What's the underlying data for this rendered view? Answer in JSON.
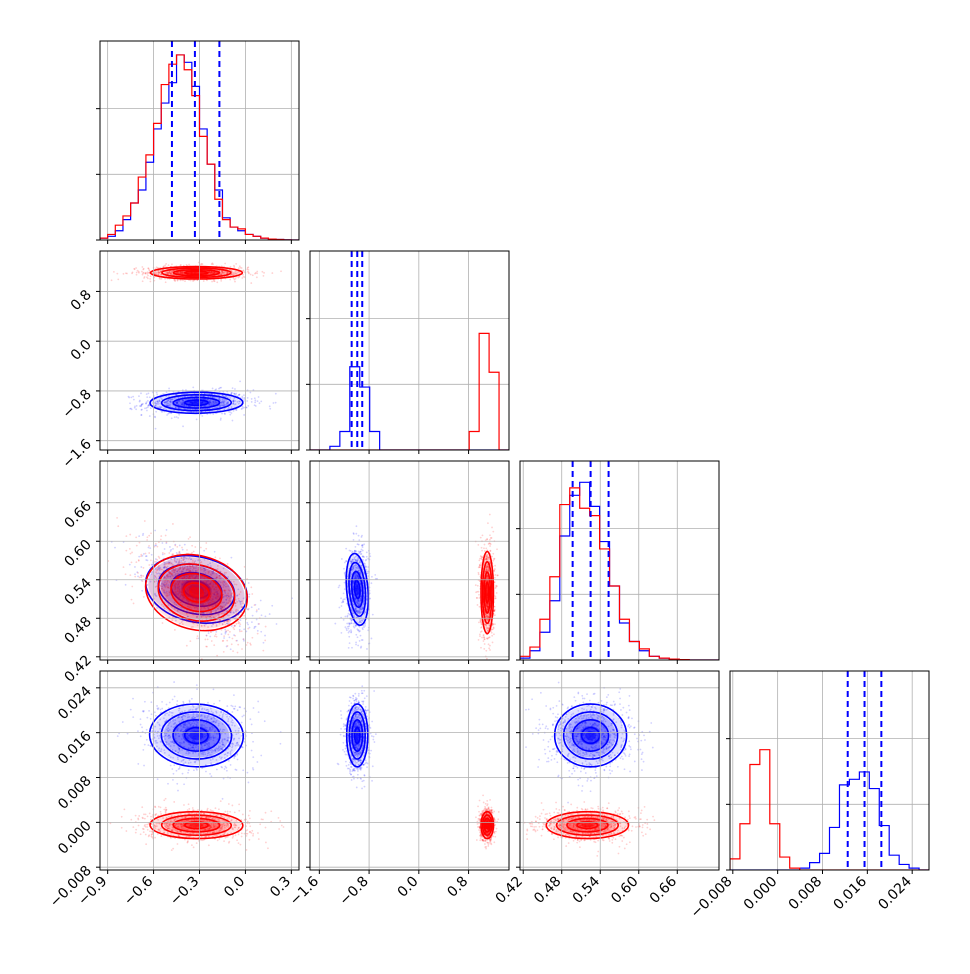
{
  "chart_data": {
    "type": "corner",
    "parameters": [
      {
        "range": [
          -0.95,
          0.35
        ],
        "ticks": [
          "−0.9",
          "−0.6",
          "−0.3",
          "0.0",
          "0.3"
        ],
        "tick_values": [
          -0.9,
          -0.6,
          -0.3,
          0.0,
          0.3
        ]
      },
      {
        "range": [
          -1.75,
          1.45
        ],
        "ticks": [
          "−1.6",
          "−0.8",
          "0.0",
          "0.8"
        ],
        "tick_values": [
          -1.6,
          -0.8,
          0.0,
          0.8
        ]
      },
      {
        "range": [
          0.415,
          0.725
        ],
        "ticks": [
          "0.42",
          "0.48",
          "0.54",
          "0.60",
          "0.66"
        ],
        "tick_values": [
          0.42,
          0.48,
          0.54,
          0.6,
          0.66
        ]
      },
      {
        "range": [
          -0.0085,
          0.027
        ],
        "ticks": [
          "−0.008",
          "0.000",
          "0.008",
          "0.016",
          "0.024"
        ],
        "tick_values": [
          -0.008,
          0.0,
          0.008,
          0.016,
          0.024
        ]
      }
    ],
    "series": [
      {
        "color": "#0000ff",
        "means": [
          -0.32,
          -0.99,
          0.525,
          0.0155
        ],
        "sigmas": [
          0.15,
          0.085,
          0.028,
          0.0028
        ],
        "correlations": {
          "1-0": 0.05,
          "2-0": -0.6,
          "2-1": 0.05,
          "3-0": -0.1,
          "3-1": 0.0,
          "3-2": 0.0
        },
        "quantile_lines": [
          [
            -0.48,
            -0.33,
            -0.17
          ],
          [
            -1.08,
            -0.99,
            -0.91
          ],
          [
            0.497,
            0.525,
            0.553
          ],
          [
            0.0125,
            0.0155,
            0.0185
          ]
        ]
      },
      {
        "color": "#ff0000",
        "means": [
          -0.32,
          1.1,
          0.52,
          -0.0005
        ],
        "sigmas": [
          0.15,
          0.05,
          0.032,
          0.0012
        ],
        "correlations": {
          "1-0": 0.0,
          "2-0": -0.62,
          "2-1": 0.0,
          "3-0": -0.05,
          "3-1": 0.0,
          "3-2": 0.0
        },
        "quantile_lines": null
      }
    ],
    "diagonal_histograms": [
      {
        "bins": [
          -0.95,
          -0.9,
          -0.85,
          -0.8,
          -0.75,
          -0.7,
          -0.65,
          -0.6,
          -0.55,
          -0.5,
          -0.45,
          -0.4,
          -0.35,
          -0.3,
          -0.25,
          -0.2,
          -0.15,
          -0.1,
          -0.05,
          0.0,
          0.05,
          0.1,
          0.15,
          0.2,
          0.25,
          0.3,
          0.35
        ],
        "blue": [
          0.01,
          0.02,
          0.05,
          0.11,
          0.2,
          0.27,
          0.42,
          0.6,
          0.74,
          0.85,
          1.0,
          0.96,
          0.83,
          0.6,
          0.41,
          0.27,
          0.12,
          0.07,
          0.05,
          0.03,
          0.02,
          0.01,
          0.005,
          0.003,
          0.001,
          0.0
        ],
        "red": [
          0.01,
          0.03,
          0.08,
          0.13,
          0.2,
          0.34,
          0.46,
          0.63,
          0.84,
          0.95,
          1.0,
          0.92,
          0.78,
          0.56,
          0.41,
          0.22,
          0.11,
          0.07,
          0.06,
          0.03,
          0.02,
          0.01,
          0.005,
          0.003,
          0.001,
          0.0
        ]
      },
      {
        "bins": [
          -1.75,
          -1.59,
          -1.43,
          -1.27,
          -1.11,
          -0.95,
          -0.79,
          -0.63,
          -0.47,
          -0.31,
          -0.15,
          0.01,
          0.17,
          0.33,
          0.49,
          0.65,
          0.81,
          0.97,
          1.13,
          1.29,
          1.45
        ],
        "blue": [
          0.0,
          0.0,
          0.02,
          0.1,
          0.45,
          0.34,
          0.1,
          0.0,
          0.0,
          0.0,
          0.0,
          0.0,
          0.0,
          0.0,
          0.0,
          0.0,
          0.0,
          0.0,
          0.0,
          0.0
        ],
        "red": [
          0.0,
          0.0,
          0.0,
          0.0,
          0.0,
          0.0,
          0.0,
          0.0,
          0.0,
          0.0,
          0.0,
          0.0,
          0.0,
          0.0,
          0.0,
          0.0,
          0.1,
          0.63,
          0.42,
          0.0
        ]
      },
      {
        "bins": [
          0.415,
          0.4305,
          0.446,
          0.4615,
          0.477,
          0.4925,
          0.508,
          0.5235,
          0.539,
          0.5545,
          0.57,
          0.5855,
          0.601,
          0.6165,
          0.632,
          0.6475,
          0.663,
          0.6785,
          0.694,
          0.7095,
          0.725
        ],
        "blue": [
          0.01,
          0.05,
          0.15,
          0.32,
          0.67,
          0.89,
          0.96,
          0.83,
          0.64,
          0.4,
          0.2,
          0.1,
          0.05,
          0.02,
          0.01,
          0.005,
          0.002,
          0.0,
          0.0,
          0.0
        ],
        "red": [
          0.02,
          0.07,
          0.22,
          0.45,
          0.84,
          0.93,
          0.82,
          0.78,
          0.6,
          0.4,
          0.22,
          0.1,
          0.06,
          0.02,
          0.01,
          0.005,
          0.002,
          0.0,
          0.0,
          0.0
        ]
      },
      {
        "bins": [
          -0.0085,
          -0.00673,
          -0.00495,
          -0.00318,
          -0.0014,
          0.00038,
          0.00215,
          0.00393,
          0.0057,
          0.00748,
          0.00925,
          0.01103,
          0.0128,
          0.01458,
          0.01635,
          0.01813,
          0.0199,
          0.02168,
          0.02345,
          0.02523,
          0.027
        ],
        "blue": [
          0.0,
          0.0,
          0.0,
          0.0,
          0.0,
          0.0,
          0.0,
          0.01,
          0.04,
          0.09,
          0.23,
          0.46,
          0.49,
          0.53,
          0.44,
          0.24,
          0.08,
          0.03,
          0.01,
          0.0
        ],
        "red": [
          0.06,
          0.25,
          0.57,
          0.65,
          0.25,
          0.07,
          0.01,
          0.0,
          0.0,
          0.0,
          0.0,
          0.0,
          0.0,
          0.0,
          0.0,
          0.0,
          0.0,
          0.0,
          0.0,
          0.0
        ]
      }
    ]
  }
}
